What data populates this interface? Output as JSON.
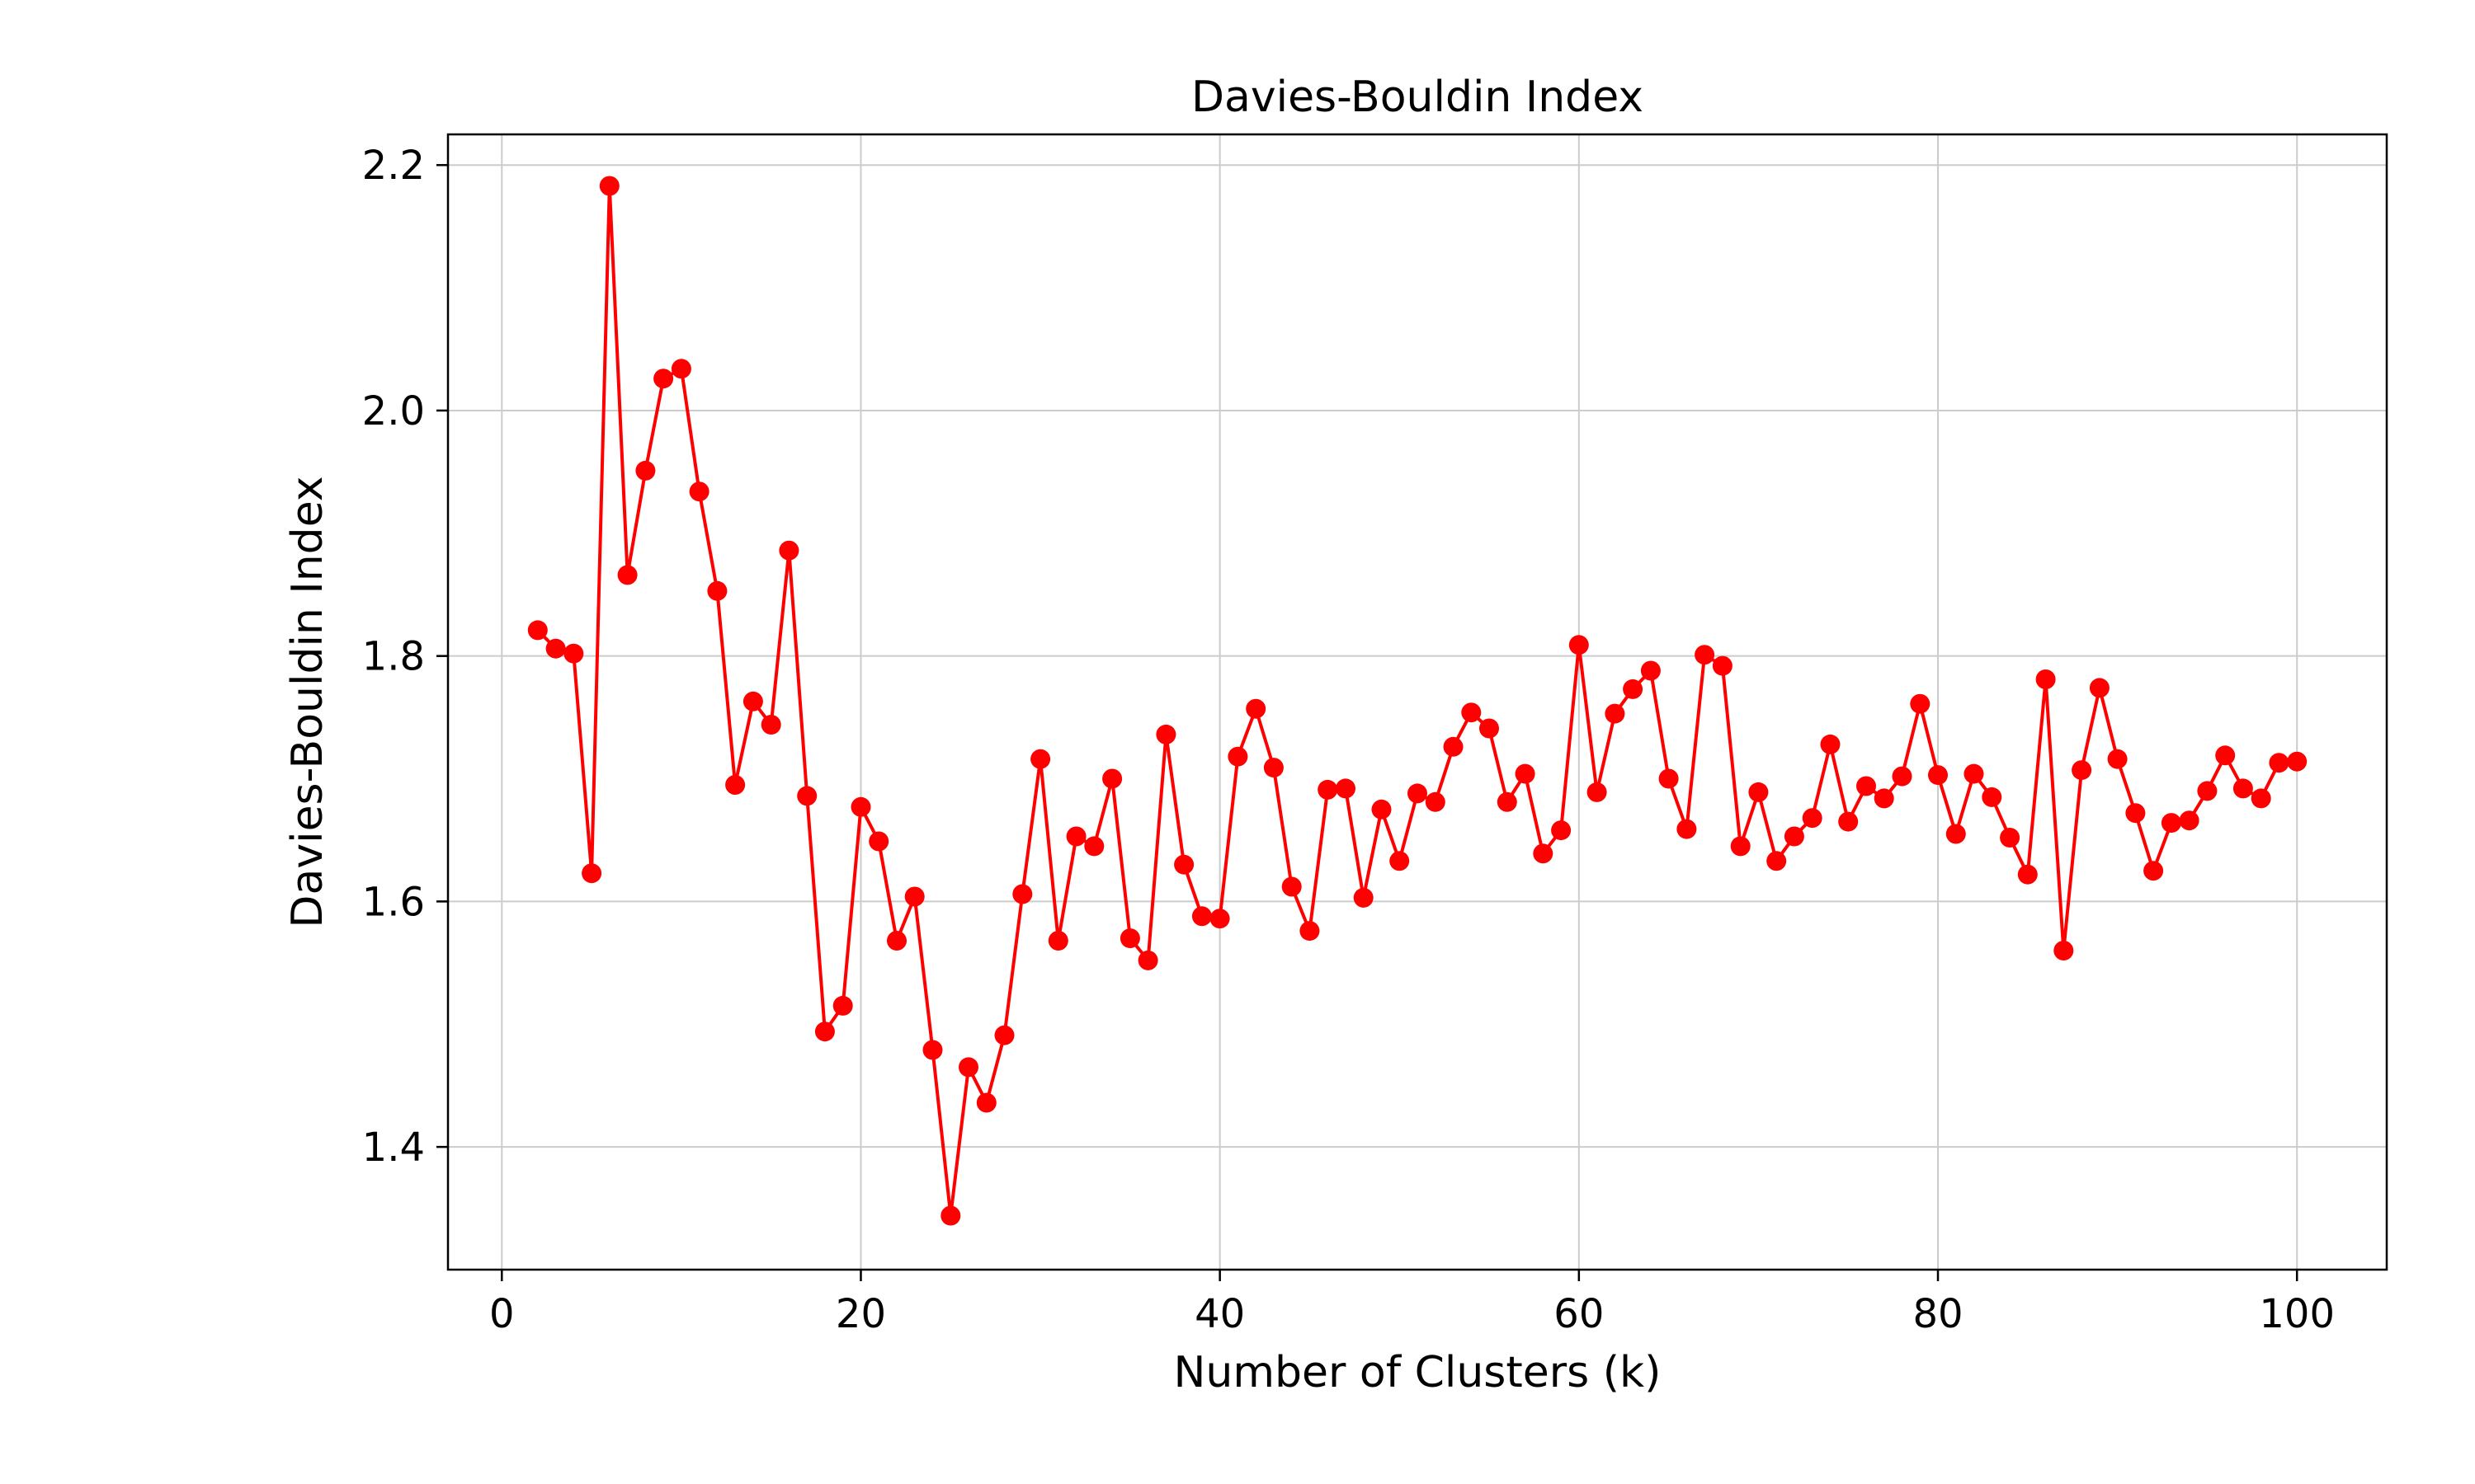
{
  "chart_data": {
    "type": "line",
    "title": "Davies-Bouldin Index",
    "xlabel": "Number of Clusters (k)",
    "ylabel": "Davies-Bouldin Index",
    "xlim": [
      -3,
      105
    ],
    "ylim": [
      1.3,
      2.225
    ],
    "xticks": [
      0,
      20,
      40,
      60,
      80,
      100
    ],
    "xtick_labels": [
      "0",
      "20",
      "40",
      "60",
      "80",
      "100"
    ],
    "yticks": [
      1.4,
      1.6,
      1.8,
      2.0,
      2.2
    ],
    "ytick_labels": [
      "1.4",
      "1.6",
      "1.8",
      "2.0",
      "2.2"
    ],
    "grid": true,
    "legend": "none",
    "marker": "circle",
    "color": "#ff0000",
    "series": [
      {
        "x": [
          2,
          3,
          4,
          5,
          6,
          7,
          8,
          9,
          10,
          11,
          12,
          13,
          14,
          15,
          16,
          17,
          18,
          19,
          20,
          21,
          22,
          23,
          24,
          25,
          26,
          27,
          28,
          29,
          30,
          31,
          32,
          33,
          34,
          35,
          36,
          37,
          38,
          39,
          40,
          41,
          42,
          43,
          44,
          45,
          46,
          47,
          48,
          49,
          50,
          51,
          52,
          53,
          54,
          55,
          56,
          57,
          58,
          59,
          60,
          61,
          62,
          63,
          64,
          65,
          66,
          67,
          68,
          69,
          70,
          71,
          72,
          73,
          74,
          75,
          76,
          77,
          78,
          79,
          80,
          81,
          82,
          83,
          84,
          85,
          86,
          87,
          88,
          89,
          90,
          91,
          92,
          93,
          94,
          95,
          96,
          97,
          98,
          99,
          100
        ],
        "values": [
          1.821,
          1.806,
          1.802,
          1.623,
          2.183,
          1.866,
          1.951,
          2.026,
          2.034,
          1.934,
          1.853,
          1.695,
          1.763,
          1.744,
          1.886,
          1.686,
          1.494,
          1.515,
          1.677,
          1.649,
          1.568,
          1.604,
          1.479,
          1.344,
          1.465,
          1.436,
          1.491,
          1.606,
          1.716,
          1.568,
          1.653,
          1.645,
          1.7,
          1.57,
          1.552,
          1.736,
          1.63,
          1.588,
          1.586,
          1.718,
          1.757,
          1.709,
          1.612,
          1.576,
          1.691,
          1.692,
          1.603,
          1.675,
          1.633,
          1.688,
          1.681,
          1.726,
          1.754,
          1.741,
          1.681,
          1.704,
          1.639,
          1.658,
          1.809,
          1.689,
          1.753,
          1.773,
          1.788,
          1.7,
          1.659,
          1.801,
          1.792,
          1.645,
          1.689,
          1.633,
          1.653,
          1.668,
          1.728,
          1.665,
          1.694,
          1.684,
          1.702,
          1.761,
          1.703,
          1.655,
          1.704,
          1.685,
          1.652,
          1.622,
          1.781,
          1.56,
          1.707,
          1.774,
          1.716,
          1.672,
          1.625,
          1.664,
          1.666,
          1.69,
          1.719,
          1.692,
          1.684,
          1.713,
          1.714
        ]
      }
    ]
  }
}
